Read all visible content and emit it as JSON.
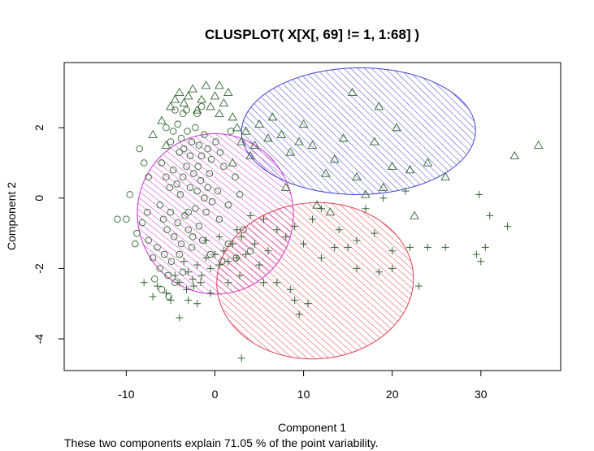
{
  "chart_data": {
    "type": "scatter",
    "title": "CLUSPLOT( X[X[, 69] != 1, 1:68] )",
    "xlabel": "Component 1",
    "ylabel": "Component 2",
    "footnote": "These two components explain 71.05 % of the point variability.",
    "xlim": [
      -17,
      39
    ],
    "ylim": [
      -4.9,
      3.85
    ],
    "x_ticks": [
      -10,
      0,
      10,
      20,
      30
    ],
    "y_ticks": [
      -4,
      -2,
      0,
      2
    ],
    "colors": {
      "blue": "#4040d0",
      "magenta": "#d030d0",
      "red": "#e04050",
      "points": "#336633"
    },
    "clusters": [
      {
        "id": 1,
        "marker": "circle",
        "ellipse": {
          "cx": 0.05,
          "cy": -0.45,
          "rx": 17.6,
          "ry": 2.28,
          "angle_deg": 6.3,
          "color": "magenta"
        },
        "points": [
          [
            -5.5,
            2.0
          ],
          [
            -5.0,
            1.6
          ],
          [
            -4.7,
            1.9
          ],
          [
            -4.2,
            2.1
          ],
          [
            -3.8,
            1.7
          ],
          [
            -3.5,
            1.4
          ],
          [
            -3.1,
            1.9
          ],
          [
            -2.6,
            1.6
          ],
          [
            -2.2,
            2.0
          ],
          [
            -1.8,
            1.5
          ],
          [
            -1.5,
            1.2
          ],
          [
            -1.2,
            1.8
          ],
          [
            -0.8,
            1.4
          ],
          [
            -0.4,
            1.1
          ],
          [
            0.1,
            1.6
          ],
          [
            0.6,
            1.3
          ],
          [
            1.0,
            0.9
          ],
          [
            -6.0,
            1.0
          ],
          [
            -5.5,
            0.6
          ],
          [
            -5.1,
            0.3
          ],
          [
            -4.7,
            0.8
          ],
          [
            -4.3,
            0.4
          ],
          [
            -3.9,
            0.1
          ],
          [
            -3.6,
            0.6
          ],
          [
            -3.2,
            0.9
          ],
          [
            -2.8,
            0.3
          ],
          [
            -2.4,
            0.7
          ],
          [
            -2.0,
            0.2
          ],
          [
            -1.6,
            0.5
          ],
          [
            -1.2,
            0.0
          ],
          [
            -0.8,
            0.3
          ],
          [
            -0.3,
            -0.1
          ],
          [
            0.3,
            0.2
          ],
          [
            -6.2,
            -0.2
          ],
          [
            -5.8,
            -0.6
          ],
          [
            -5.4,
            -0.9
          ],
          [
            -5.0,
            -0.4
          ],
          [
            -4.6,
            -1.1
          ],
          [
            -4.2,
            -0.7
          ],
          [
            -3.8,
            -1.3
          ],
          [
            -3.4,
            -0.5
          ],
          [
            -3.0,
            -0.9
          ],
          [
            -2.6,
            -1.4
          ],
          [
            -2.2,
            -0.3
          ],
          [
            -1.8,
            -0.8
          ],
          [
            -1.4,
            -1.2
          ],
          [
            -7.5,
            -1.2
          ],
          [
            -7.0,
            -1.7
          ],
          [
            -6.5,
            -1.4
          ],
          [
            -6.2,
            -2.0
          ],
          [
            -5.7,
            -1.6
          ],
          [
            -5.3,
            -2.2
          ],
          [
            -4.9,
            -1.8
          ],
          [
            -4.5,
            -2.4
          ],
          [
            -4.0,
            -1.6
          ],
          [
            -3.6,
            -2.1
          ],
          [
            -8.8,
            -1.0
          ],
          [
            -8.2,
            -0.7
          ],
          [
            -7.6,
            -0.4
          ],
          [
            -9.0,
            -1.3
          ],
          [
            -10.0,
            -0.6
          ],
          [
            -11.0,
            -0.6
          ],
          [
            -9.6,
            0.1
          ],
          [
            -8.0,
            1.0
          ],
          [
            -8.5,
            1.4
          ],
          [
            -7.5,
            0.6
          ],
          [
            -3.0,
            -0.4
          ],
          [
            -2.5,
            -1.1
          ],
          [
            -1.0,
            -0.4
          ],
          [
            0.5,
            -0.6
          ],
          [
            1.5,
            -0.2
          ],
          [
            2.3,
            0.6
          ],
          [
            1.8,
            1.9
          ],
          [
            2.8,
            0.1
          ],
          [
            -2.0,
            2.4
          ],
          [
            -1.5,
            2.6
          ],
          [
            -3.2,
            2.5
          ],
          [
            -4.5,
            2.5
          ],
          [
            -6.8,
            -2.3
          ],
          [
            -6.0,
            -2.6
          ],
          [
            -5.2,
            -2.8
          ],
          [
            -0.5,
            -1.6
          ],
          [
            0.8,
            -1.8
          ],
          [
            1.5,
            -1.3
          ],
          [
            2.4,
            -1.7
          ],
          [
            3.2,
            -0.9
          ],
          [
            4.0,
            -1.5
          ],
          [
            -3.6,
            2.4
          ],
          [
            -2.8,
            1.2
          ],
          [
            -1.9,
            0.9
          ],
          [
            -0.6,
            0.7
          ],
          [
            -4.0,
            1.3
          ]
        ]
      },
      {
        "id": 2,
        "marker": "triangle",
        "ellipse": {
          "cx": 16.2,
          "cy": 1.9,
          "rx": 26.4,
          "ry": 1.8,
          "angle_deg": 0.6,
          "color": "blue"
        },
        "points": [
          [
            -5.0,
            2.6
          ],
          [
            -4.5,
            2.8
          ],
          [
            -4.0,
            3.0
          ],
          [
            -3.5,
            2.7
          ],
          [
            -3.0,
            2.9
          ],
          [
            -2.5,
            3.1
          ],
          [
            -2.0,
            2.5
          ],
          [
            -1.5,
            2.8
          ],
          [
            -1.0,
            3.2
          ],
          [
            -0.5,
            2.6
          ],
          [
            0.0,
            2.9
          ],
          [
            0.5,
            2.4
          ],
          [
            1.0,
            2.7
          ],
          [
            1.5,
            3.0
          ],
          [
            2.0,
            2.3
          ],
          [
            2.5,
            2.0
          ],
          [
            3.0,
            1.6
          ],
          [
            3.5,
            1.9
          ],
          [
            4.0,
            1.2
          ],
          [
            4.5,
            1.5
          ],
          [
            5.0,
            2.1
          ],
          [
            6.0,
            1.7
          ],
          [
            6.5,
            2.3
          ],
          [
            7.5,
            1.8
          ],
          [
            8.5,
            1.3
          ],
          [
            9.5,
            1.6
          ],
          [
            10.0,
            2.1
          ],
          [
            11.0,
            1.5
          ],
          [
            12.5,
            0.7
          ],
          [
            13.5,
            1.1
          ],
          [
            14.5,
            1.7
          ],
          [
            16.0,
            0.6
          ],
          [
            17.0,
            0.1
          ],
          [
            18.0,
            1.6
          ],
          [
            20.0,
            0.9
          ],
          [
            22.0,
            0.8
          ],
          [
            24.0,
            1.0
          ],
          [
            26.0,
            0.6
          ],
          [
            15.5,
            3.0
          ],
          [
            18.5,
            2.6
          ],
          [
            0.5,
            3.2
          ],
          [
            -6.0,
            2.2
          ],
          [
            -7.0,
            1.8
          ],
          [
            -5.5,
            1.5
          ],
          [
            2.0,
            1.0
          ],
          [
            8.0,
            0.3
          ],
          [
            11.5,
            -0.2
          ],
          [
            13.0,
            -0.4
          ],
          [
            19.0,
            0.3
          ],
          [
            22.5,
            -0.5
          ],
          [
            36.5,
            1.5
          ],
          [
            33.8,
            1.2
          ],
          [
            20.5,
            2.0
          ]
        ]
      },
      {
        "id": 3,
        "marker": "plus",
        "ellipse": {
          "cx": 11.3,
          "cy": -2.35,
          "rx": 22.2,
          "ry": 2.22,
          "angle_deg": 3.3,
          "color": "red"
        },
        "points": [
          [
            -3.5,
            -1.8
          ],
          [
            -3.0,
            -2.1
          ],
          [
            -2.5,
            -2.3
          ],
          [
            -2.0,
            -1.9
          ],
          [
            -1.5,
            -2.2
          ],
          [
            -1.0,
            -1.7
          ],
          [
            -0.5,
            -2.0
          ],
          [
            0.0,
            -1.6
          ],
          [
            0.5,
            -1.9
          ],
          [
            1.0,
            -1.5
          ],
          [
            1.5,
            -1.8
          ],
          [
            2.0,
            -1.3
          ],
          [
            2.5,
            -1.7
          ],
          [
            3.0,
            -1.1
          ],
          [
            -4.0,
            -2.4
          ],
          [
            -3.2,
            -2.6
          ],
          [
            -2.4,
            -2.5
          ],
          [
            -1.6,
            -2.4
          ],
          [
            -4.5,
            -2.2
          ],
          [
            -5.5,
            -2.7
          ],
          [
            -6.5,
            -2.5
          ],
          [
            -8.0,
            -2.4
          ],
          [
            -7.0,
            -2.8
          ],
          [
            -5.0,
            -2.9
          ],
          [
            -4.0,
            -3.4
          ],
          [
            -2.0,
            -3.0
          ],
          [
            3.5,
            -1.6
          ],
          [
            4.5,
            -1.3
          ],
          [
            5.0,
            -1.9
          ],
          [
            6.0,
            -1.5
          ],
          [
            7.0,
            -0.9
          ],
          [
            8.0,
            -1.1
          ],
          [
            9.0,
            -0.8
          ],
          [
            10.0,
            -1.3
          ],
          [
            11.0,
            -0.6
          ],
          [
            12.0,
            -0.3
          ],
          [
            14.0,
            -0.9
          ],
          [
            15.0,
            -1.4
          ],
          [
            16.0,
            -1.2
          ],
          [
            18.0,
            -1.0
          ],
          [
            20.0,
            -1.5
          ],
          [
            22.0,
            -1.4
          ],
          [
            24.0,
            -1.4
          ],
          [
            26.0,
            -1.4
          ],
          [
            29.5,
            -1.6
          ],
          [
            30.5,
            -1.4
          ],
          [
            31.0,
            -0.5
          ],
          [
            33.0,
            -0.8
          ],
          [
            29.8,
            0.1
          ],
          [
            18.5,
            -2.1
          ],
          [
            20.0,
            -2.0
          ],
          [
            23.0,
            -2.5
          ],
          [
            8.5,
            -2.6
          ],
          [
            9.0,
            -2.9
          ],
          [
            9.5,
            -3.3
          ],
          [
            10.5,
            -3.0
          ],
          [
            7.0,
            -2.4
          ],
          [
            5.5,
            -2.4
          ],
          [
            16.0,
            -2.0
          ],
          [
            3.0,
            -4.55
          ],
          [
            21.5,
            0.2
          ],
          [
            19.0,
            0.0
          ],
          [
            17.0,
            -0.3
          ],
          [
            13.5,
            -1.4
          ],
          [
            12.0,
            -1.7
          ],
          [
            5.5,
            -0.6
          ],
          [
            4.0,
            -0.5
          ],
          [
            2.5,
            -0.9
          ],
          [
            -1.0,
            -1.2
          ],
          [
            0.5,
            -1.1
          ],
          [
            1.5,
            -2.4
          ],
          [
            2.8,
            -2.2
          ],
          [
            -0.5,
            -2.7
          ],
          [
            -3.0,
            -2.9
          ],
          [
            30.0,
            -1.8
          ]
        ]
      }
    ]
  }
}
